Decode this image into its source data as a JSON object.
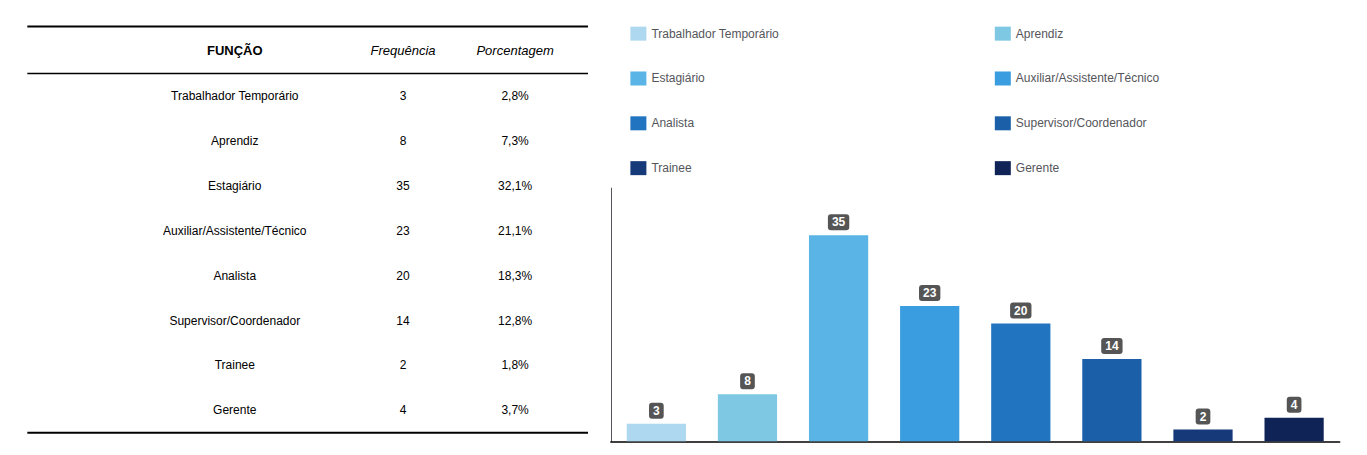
{
  "chart_data": {
    "type": "bar",
    "categories": [
      "Trabalhador Temporário",
      "Aprendiz",
      "Estagiário",
      "Auxiliar/Assistente/Técnico",
      "Analista",
      "Supervisor/Coordenador",
      "Trainee",
      "Gerente"
    ],
    "values": [
      3,
      8,
      35,
      23,
      20,
      14,
      2,
      4
    ],
    "colors": [
      "#add8f0",
      "#7ec8e3",
      "#5ab4e5",
      "#3a9de0",
      "#2074c0",
      "#1a5fa8",
      "#16397a",
      "#0f2356"
    ],
    "ylim": [
      0,
      43
    ],
    "yticks": [],
    "grid": false,
    "legend": "top",
    "data_labels": true,
    "tick_labels": false,
    "table": {
      "header": [
        "FUNÇÃO",
        "Frequência",
        "Porcentagem"
      ],
      "percentages": [
        2.8,
        7.3,
        32.1,
        21.1,
        18.3,
        12.8,
        1.8,
        3.7
      ],
      "percentage_labels": [
        "2,8%",
        "7,3%",
        "32,1%",
        "21,1%",
        "18,3%",
        "12,8%",
        "1,8%",
        "3,7%"
      ]
    }
  }
}
